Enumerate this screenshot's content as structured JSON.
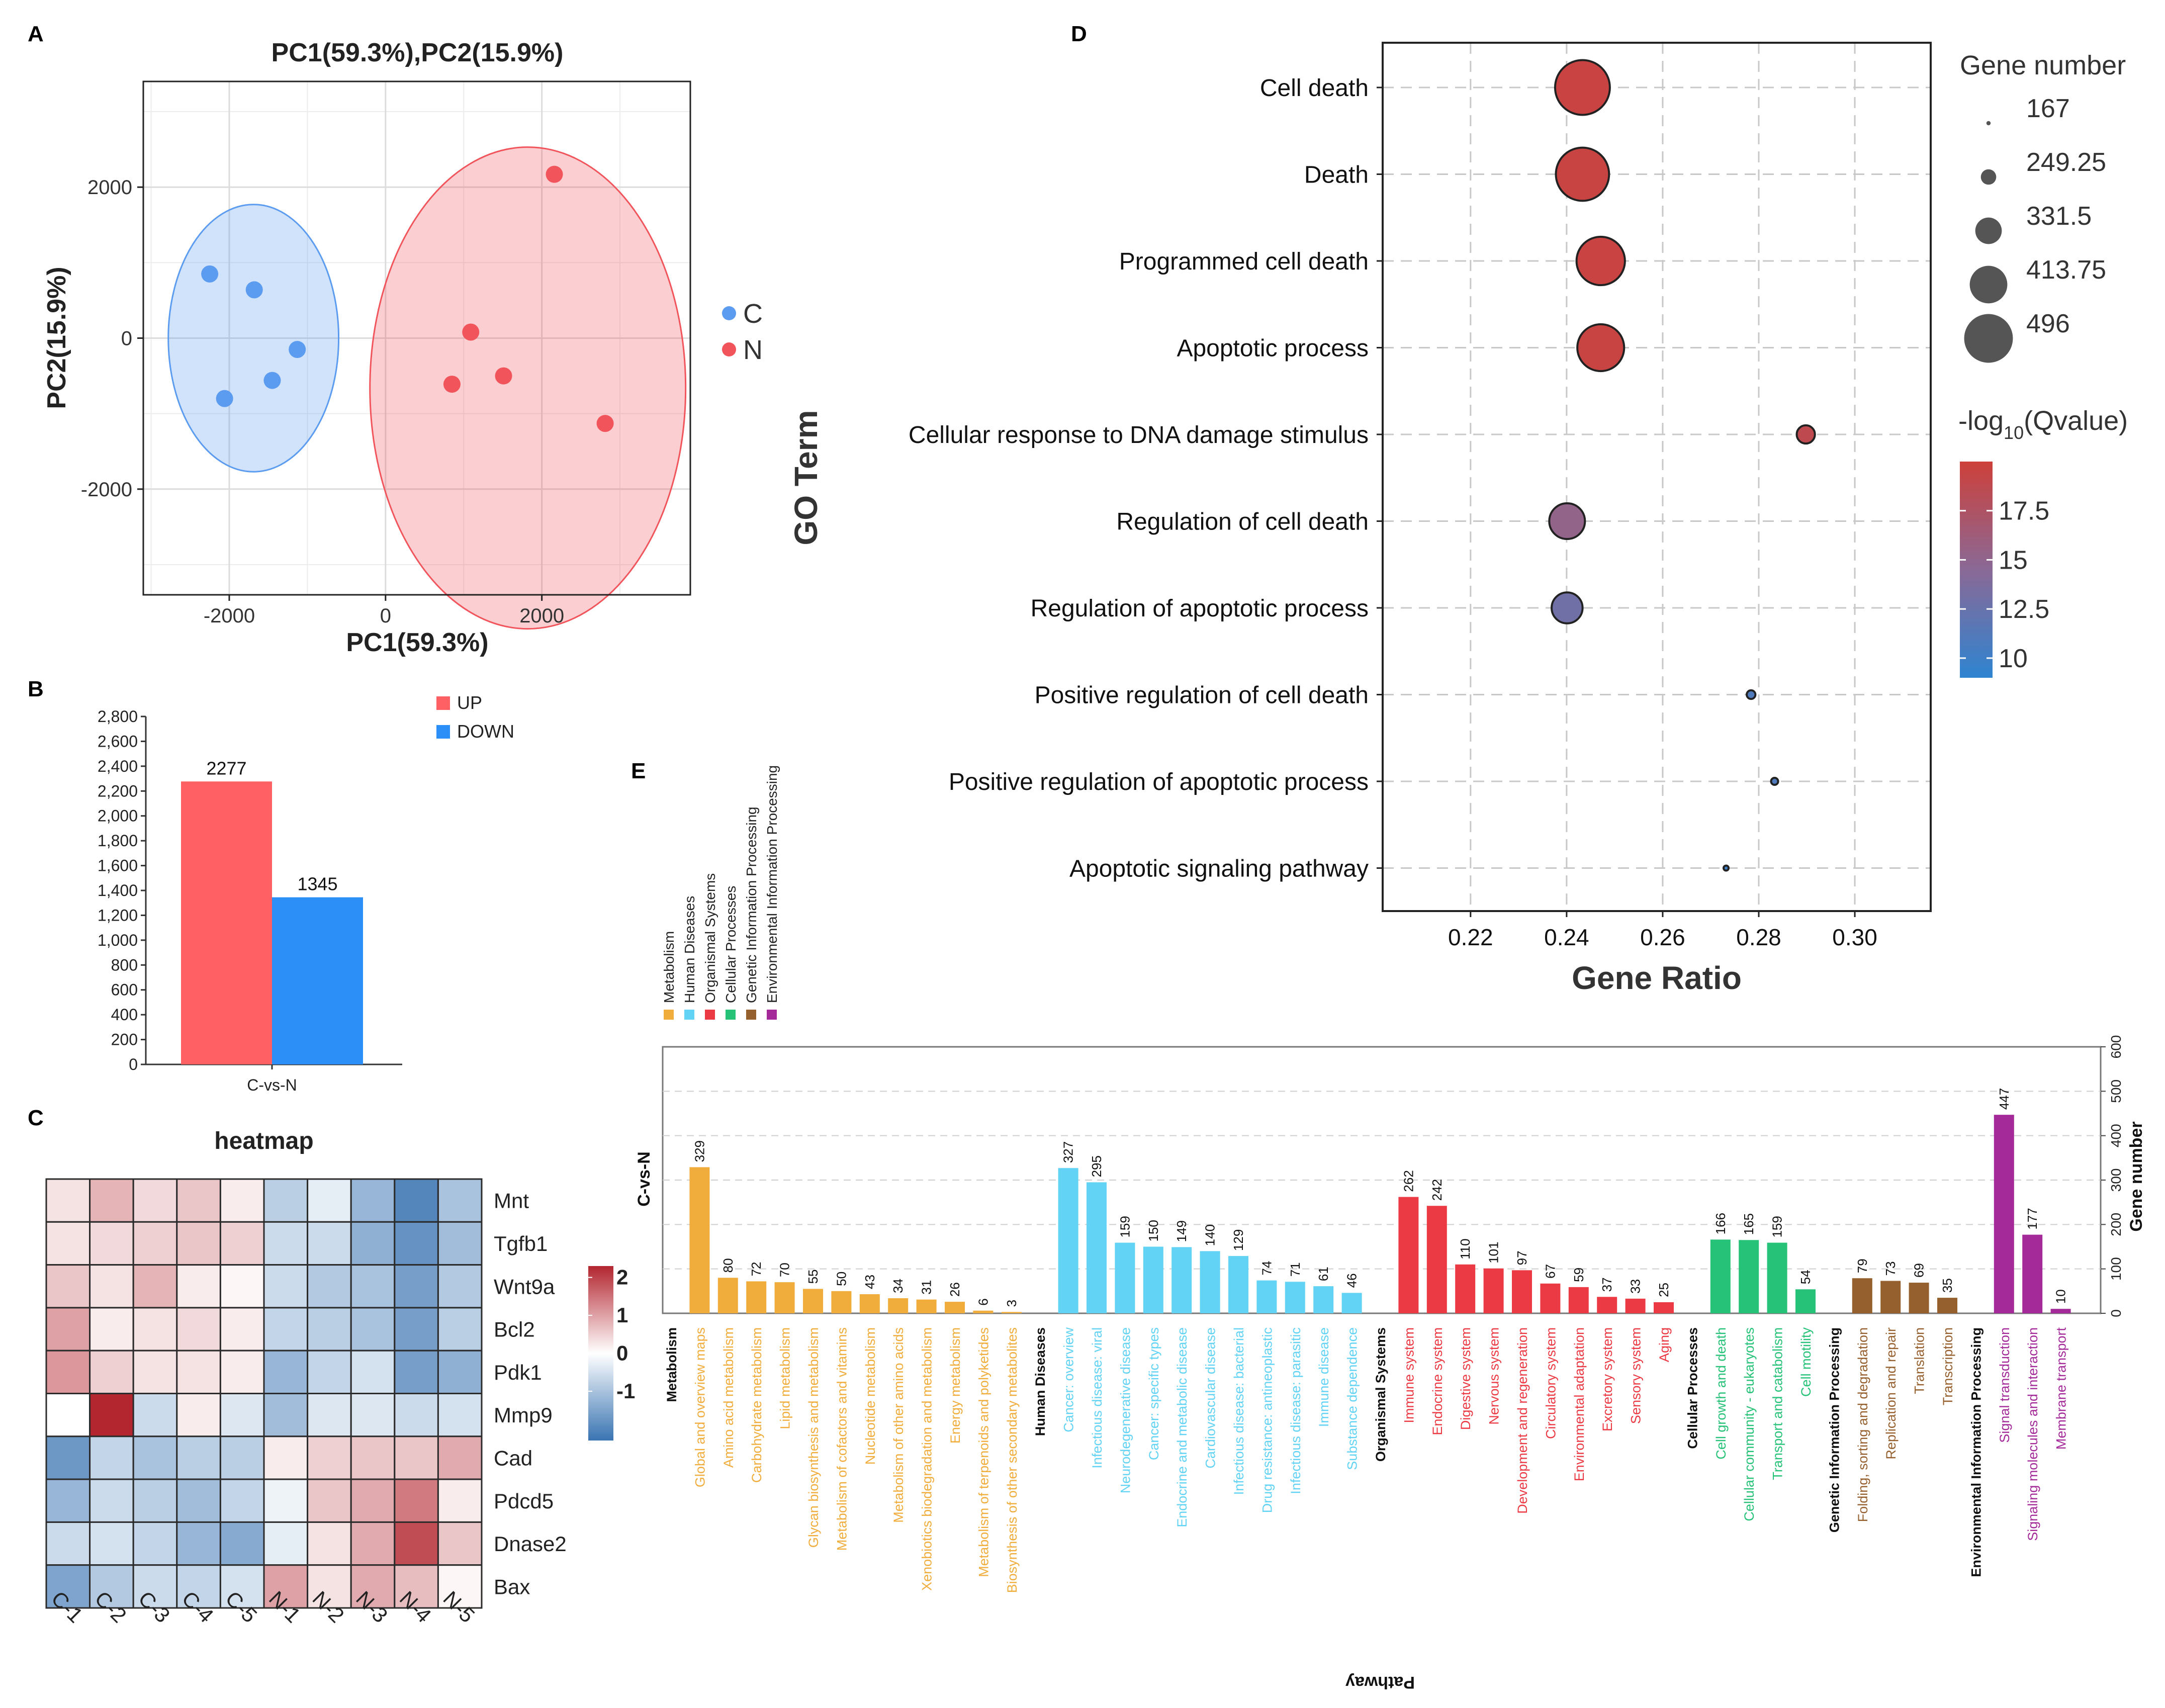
{
  "panel_letters": {
    "a": "A",
    "b": "B",
    "c": "C",
    "d": "D",
    "e": "E"
  },
  "colors": {
    "C": "#5b9cf0",
    "N": "#f2545b",
    "up": "#fe6064",
    "down": "#2c8ff7",
    "Metabolism": "#f0ad3c",
    "Human Diseases": "#62d3f4",
    "Organismal Systems": "#ec3a44",
    "Cellular Processes": "#25c277",
    "Genetic Information Processing": "#96602e",
    "Environmental Information Processing": "#a42a9a"
  },
  "chart_data": [
    {
      "id": "pca",
      "type": "scatter",
      "title": "PC1(59.3%),PC2(15.9%)",
      "xlabel": "PC1(59.3%)",
      "ylabel": "PC2(15.9%)",
      "xlim": [
        -3100,
        3900
      ],
      "ylim": [
        -3400,
        3400
      ],
      "xticks": [
        -2000,
        0,
        2000
      ],
      "yticks": [
        -2000,
        0,
        2000
      ],
      "xtick_labels": [
        "-2000",
        "0",
        "2000"
      ],
      "ytick_labels": [
        "-2000",
        "0",
        "2000"
      ],
      "legend": [
        "C",
        "N"
      ],
      "series": [
        {
          "name": "C",
          "points": [
            [
              -2250,
              850
            ],
            [
              -1680,
              640
            ],
            [
              -1130,
              -150
            ],
            [
              -1450,
              -560
            ],
            [
              -2060,
              -800
            ]
          ]
        },
        {
          "name": "N",
          "points": [
            [
              2160,
              2170
            ],
            [
              1090,
              80
            ],
            [
              1510,
              -500
            ],
            [
              850,
              -610
            ],
            [
              2810,
              -1130
            ]
          ]
        }
      ],
      "ellipses": [
        {
          "name": "C",
          "cx": -1690,
          "cy": 0,
          "rx": 1090,
          "ry": 1770
        },
        {
          "name": "N",
          "cx": 1820,
          "cy": -660,
          "rx": 2020,
          "ry": 3190
        }
      ]
    },
    {
      "id": "degs",
      "type": "bar",
      "categories": [
        "C-vs-N"
      ],
      "series": [
        {
          "name": "UP",
          "values": [
            2277
          ]
        },
        {
          "name": "DOWN",
          "values": [
            1345
          ]
        }
      ],
      "value_labels": [
        "2277",
        "1345"
      ],
      "ylim": [
        0,
        2800
      ],
      "yticks": [
        0,
        200,
        400,
        600,
        800,
        1000,
        1200,
        1400,
        1600,
        1800,
        2000,
        2200,
        2400,
        2600,
        2800
      ],
      "ytick_labels": [
        "0",
        "200",
        "400",
        "600",
        "800",
        "1,000",
        "1,200",
        "1,400",
        "1,600",
        "1,800",
        "2,000",
        "2,200",
        "2,400",
        "2,600",
        "2,800"
      ],
      "legend": [
        "UP",
        "DOWN"
      ]
    },
    {
      "id": "heatmap",
      "type": "heatmap",
      "title": "heatmap",
      "columns": [
        "C-1",
        "C-2",
        "C-3",
        "C-4",
        "C-5",
        "N-1",
        "N-2",
        "N-3",
        "N-4",
        "N-5"
      ],
      "rows": [
        "Mnt",
        "Tgfb1",
        "Wnt9a",
        "Bcl2",
        "Pdk1",
        "Mmp9",
        "Cad",
        "Pdcd5",
        "Dnase2",
        "Bax"
      ],
      "values": [
        [
          0.3,
          0.8,
          0.4,
          0.6,
          0.2,
          -0.8,
          -0.3,
          -1.2,
          -2.0,
          -1.0
        ],
        [
          0.3,
          0.4,
          0.5,
          0.6,
          0.5,
          -0.6,
          -0.6,
          -1.3,
          -1.8,
          -1.1
        ],
        [
          0.6,
          0.3,
          0.8,
          0.2,
          0.1,
          -0.6,
          -0.9,
          -1.0,
          -1.6,
          -0.9
        ],
        [
          1.0,
          0.2,
          0.3,
          0.4,
          0.2,
          -0.7,
          -0.8,
          -1.0,
          -1.6,
          -0.8
        ],
        [
          1.1,
          0.5,
          0.3,
          0.3,
          0.2,
          -1.2,
          -0.7,
          -0.5,
          -1.6,
          -1.3
        ],
        [
          0.0,
          2.3,
          -0.6,
          0.2,
          -0.4,
          -1.1,
          -0.4,
          -0.4,
          -0.6,
          -0.5
        ],
        [
          -1.7,
          -0.7,
          -1.0,
          -0.8,
          -0.8,
          0.2,
          0.5,
          0.6,
          0.6,
          0.9
        ],
        [
          -1.2,
          -0.6,
          -0.8,
          -1.1,
          -0.7,
          -0.2,
          0.6,
          0.9,
          1.4,
          0.2
        ],
        [
          -0.6,
          -0.5,
          -0.7,
          -1.2,
          -1.4,
          -0.3,
          0.3,
          0.9,
          1.9,
          0.6
        ],
        [
          -1.5,
          -0.9,
          -0.6,
          -0.7,
          -0.5,
          1.0,
          0.3,
          0.9,
          0.7,
          0.1
        ]
      ],
      "scale_ticks": [
        2,
        1,
        0,
        -1
      ],
      "scale_labels": [
        "2",
        "1",
        "0",
        "-1"
      ],
      "scale_range": [
        -2.3,
        2.3
      ]
    },
    {
      "id": "go",
      "type": "scatter",
      "ylabel": "GO Term",
      "xlabel": "Gene Ratio",
      "xlim": [
        0.2017,
        0.3158
      ],
      "xticks": [
        0.22,
        0.24,
        0.26,
        0.28,
        0.3
      ],
      "xtick_labels": [
        "0.22",
        "0.24",
        "0.26",
        "0.28",
        "0.30"
      ],
      "terms": [
        "Cell death",
        "Death",
        "Programmed cell death",
        "Apoptotic process",
        "Cellular response to DNA damage stimulus",
        "Regulation of cell death",
        "Regulation of apoptotic process",
        "Positive regulation of cell death",
        "Positive regulation of apoptotic process",
        "Apoptotic signaling pathway"
      ],
      "gene_ratio": [
        0.2433,
        0.2433,
        0.2471,
        0.2471,
        0.2898,
        0.2401,
        0.2401,
        0.2784,
        0.2833,
        0.2732
      ],
      "gene_number": [
        480,
        470,
        440,
        430,
        250,
        360,
        330,
        190,
        180,
        167
      ],
      "neg_log10_q": [
        19.6,
        19.5,
        19.6,
        19.5,
        18.8,
        15.2,
        13.0,
        11.0,
        11.0,
        10.0
      ],
      "size_legend_title": "Gene number",
      "size_legend": [
        167,
        249.25,
        331.5,
        413.75,
        496
      ],
      "size_legend_labels": [
        "167",
        "249.25",
        "331.5",
        "413.75",
        "496"
      ],
      "color_legend_title": "-log10(Qvalue)",
      "color_legend_title_parts": [
        "-log",
        "10",
        "(Qvalue)"
      ],
      "color_ticks": [
        17.5,
        15,
        12.5,
        10
      ],
      "color_tick_labels": [
        "17.5",
        "15",
        "12.5",
        "10"
      ],
      "color_range": [
        9.0,
        20.0
      ]
    },
    {
      "id": "kegg",
      "type": "bar",
      "ylabel": "C-vs-N",
      "xlabel": "Pathway",
      "right_axis_label": "Gene number",
      "ylim": [
        0,
        600
      ],
      "yticks": [
        0,
        100,
        200,
        300,
        400,
        500,
        600
      ],
      "ytick_labels": [
        "0",
        "100",
        "200",
        "300",
        "400",
        "500",
        "600"
      ],
      "legend": [
        "Metabolism",
        "Human Diseases",
        "Organismal Systems",
        "Cellular Processes",
        "Genetic Information Processing",
        "Environmental Information Processing"
      ],
      "groups": [
        {
          "name": "Metabolism",
          "items": [
            {
              "label": "Global and overview maps",
              "value": 329
            },
            {
              "label": "Amino acid metabolism",
              "value": 80
            },
            {
              "label": "Carbohydrate metabolism",
              "value": 72
            },
            {
              "label": "Lipid metabolism",
              "value": 70
            },
            {
              "label": "Glycan biosynthesis and metabolism",
              "value": 55
            },
            {
              "label": "Metabolism of cofactors and vitamins",
              "value": 50
            },
            {
              "label": "Nucleotide metabolism",
              "value": 43
            },
            {
              "label": "Metabolism of other amino acids",
              "value": 34
            },
            {
              "label": "Xenobiotics biodegradation and metabolism",
              "value": 31
            },
            {
              "label": "Energy metabolism",
              "value": 26
            },
            {
              "label": "Metabolism of terpenoids and polyketides",
              "value": 6
            },
            {
              "label": "Biosynthesis of other secondary metabolites",
              "value": 3
            }
          ]
        },
        {
          "name": "Human Diseases",
          "items": [
            {
              "label": "Cancer: overview",
              "value": 327
            },
            {
              "label": "Infectious disease: viral",
              "value": 295
            },
            {
              "label": "Neurodegenerative disease",
              "value": 159
            },
            {
              "label": "Cancer: specific types",
              "value": 150
            },
            {
              "label": "Endocrine and metabolic disease",
              "value": 149
            },
            {
              "label": "Cardiovascular disease",
              "value": 140
            },
            {
              "label": "Infectious disease: bacterial",
              "value": 129
            },
            {
              "label": "Drug resistance: antineoplastic",
              "value": 74
            },
            {
              "label": "Infectious disease: parasitic",
              "value": 71
            },
            {
              "label": "Immune disease",
              "value": 61
            },
            {
              "label": "Substance dependence",
              "value": 46
            }
          ]
        },
        {
          "name": "Organismal Systems",
          "items": [
            {
              "label": "Immune system",
              "value": 262
            },
            {
              "label": "Endocrine system",
              "value": 242
            },
            {
              "label": "Digestive system",
              "value": 110
            },
            {
              "label": "Nervous system",
              "value": 101
            },
            {
              "label": "Development and regeneration",
              "value": 97
            },
            {
              "label": "Circulatory system",
              "value": 67
            },
            {
              "label": "Environmental adaptation",
              "value": 59
            },
            {
              "label": "Excretory system",
              "value": 37
            },
            {
              "label": "Sensory system",
              "value": 33
            },
            {
              "label": "Aging",
              "value": 25
            }
          ]
        },
        {
          "name": "Cellular Processes",
          "items": [
            {
              "label": "Cell growth and death",
              "value": 166
            },
            {
              "label": "Cellular community - eukaryotes",
              "value": 165
            },
            {
              "label": "Transport and catabolism",
              "value": 159
            },
            {
              "label": "Cell motility",
              "value": 54
            }
          ]
        },
        {
          "name": "Genetic Information Processing",
          "items": [
            {
              "label": "Folding, sorting and degradation",
              "value": 79
            },
            {
              "label": "Replication and repair",
              "value": 73
            },
            {
              "label": "Translation",
              "value": 69
            },
            {
              "label": "Transcription",
              "value": 35
            }
          ]
        },
        {
          "name": "Environmental Information Processing",
          "items": [
            {
              "label": "Signal transduction",
              "value": 447
            },
            {
              "label": "Signaling molecules and interaction",
              "value": 177
            },
            {
              "label": "Membrane transport",
              "value": 10
            }
          ]
        }
      ]
    }
  ]
}
